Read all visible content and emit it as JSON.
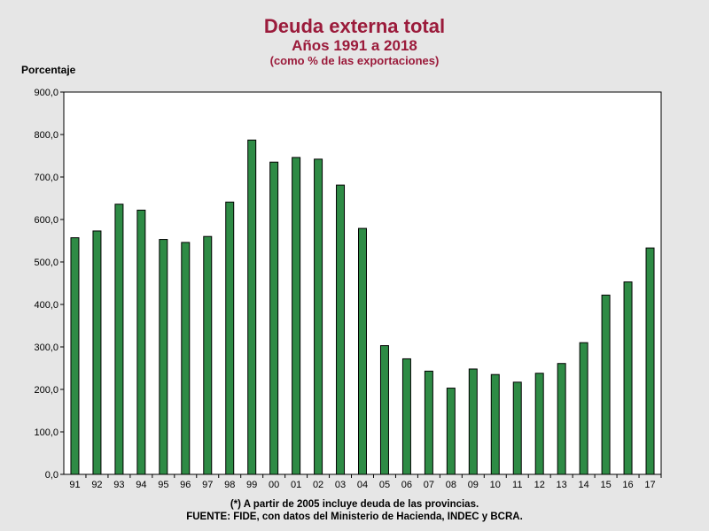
{
  "header": {
    "title": "Deuda externa total",
    "subtitle": "Años 1991 a 2018",
    "subtitle2": "(como % de las exportaciones)"
  },
  "footer": {
    "note": "(*) A partir de 2005 incluye deuda de las provincias.",
    "source": "FUENTE: FIDE, con datos del Ministerio de Hacienda, INDEC y BCRA."
  },
  "colors": {
    "bar_fill": "#2e8b45",
    "bar_stroke": "#000000",
    "title": "#9b1b3b",
    "plot_bg": "#ffffff",
    "page_bg": "#e6e6e6"
  },
  "chart_data": {
    "type": "bar",
    "title": "Deuda externa total",
    "xlabel": "",
    "ylabel": "Porcentaje",
    "ylim": [
      0,
      900
    ],
    "yticks": [
      "0,0",
      "100,0",
      "200,0",
      "300,0",
      "400,0",
      "500,0",
      "600,0",
      "700,0",
      "800,0",
      "900,0"
    ],
    "grid": false,
    "categories": [
      "91",
      "92",
      "93",
      "94",
      "95",
      "96",
      "97",
      "98",
      "99",
      "00",
      "01",
      "02",
      "03",
      "04",
      "05",
      "06",
      "07",
      "08",
      "09",
      "10",
      "11",
      "12",
      "13",
      "14",
      "15",
      "16",
      "17"
    ],
    "values": [
      557,
      573,
      636,
      622,
      553,
      546,
      560,
      641,
      787,
      735,
      746,
      742,
      681,
      579,
      303,
      272,
      243,
      203,
      248,
      235,
      217,
      238,
      261,
      310,
      422,
      453,
      533
    ]
  }
}
